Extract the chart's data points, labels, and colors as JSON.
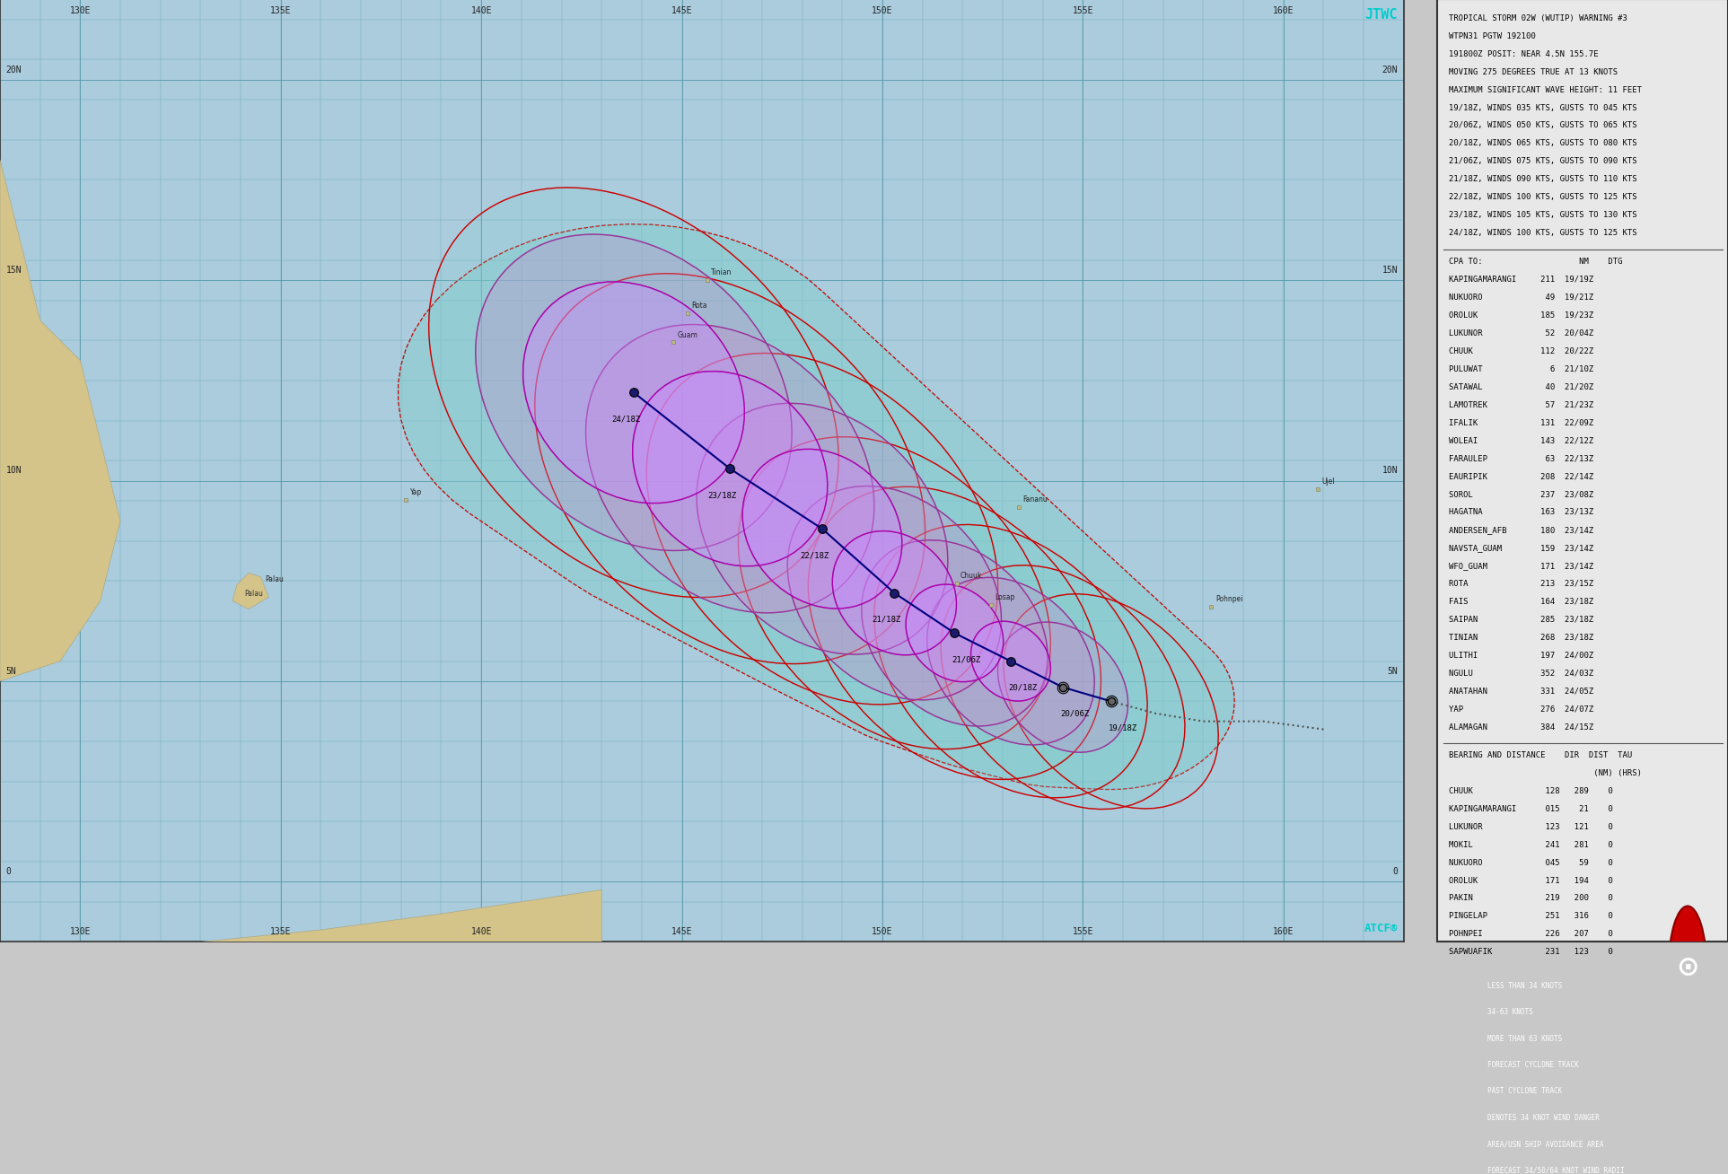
{
  "map_extent": [
    128.0,
    163.0,
    -1.5,
    22.0
  ],
  "background_ocean": "#aaccdd",
  "background_land": "#d4c48a",
  "grid_color": "#70aabb",
  "jtwc_color": "#00cccc",
  "atcf_color": "#00cccc",
  "track_line_color": "#000080",
  "past_track_color": "#555555",
  "wind34_fill": "#80cccc",
  "wind34_line": "#cc0000",
  "wind50_fill_color": "#cc88cc",
  "wind64_fill_color": "#9955bb",
  "storm_track_points": [
    {
      "lon": 155.7,
      "lat": 4.5,
      "time": "19/18Z",
      "winds": 35,
      "label_ox": 0.3,
      "label_oy": -0.55
    },
    {
      "lon": 154.5,
      "lat": 4.85,
      "time": "20/06Z",
      "winds": 50,
      "label_ox": 0.3,
      "label_oy": -0.55
    },
    {
      "lon": 153.2,
      "lat": 5.5,
      "time": "20/18Z",
      "winds": 65,
      "label_ox": 0.3,
      "label_oy": -0.55
    },
    {
      "lon": 151.8,
      "lat": 6.2,
      "time": "21/06Z",
      "winds": 75,
      "label_ox": 0.3,
      "label_oy": -0.55
    },
    {
      "lon": 150.3,
      "lat": 7.2,
      "time": "21/18Z",
      "winds": 90,
      "label_ox": -0.2,
      "label_oy": -0.55
    },
    {
      "lon": 148.5,
      "lat": 8.8,
      "time": "22/18Z",
      "winds": 100,
      "label_ox": -0.2,
      "label_oy": -0.55
    },
    {
      "lon": 146.2,
      "lat": 10.3,
      "time": "23/18Z",
      "winds": 105,
      "label_ox": -0.2,
      "label_oy": -0.55
    },
    {
      "lon": 143.8,
      "lat": 12.2,
      "time": "24/18Z",
      "winds": 100,
      "label_ox": -0.2,
      "label_oy": -0.55
    }
  ],
  "past_track_points": [
    {
      "lon": 161.0,
      "lat": 3.8
    },
    {
      "lon": 159.5,
      "lat": 4.0
    },
    {
      "lon": 158.0,
      "lat": 4.0
    },
    {
      "lon": 156.8,
      "lat": 4.2
    },
    {
      "lon": 155.7,
      "lat": 4.5
    }
  ],
  "radii_34kt": [
    2.2,
    2.5,
    2.8,
    3.0,
    3.2,
    3.6,
    4.0,
    4.2
  ],
  "radii_50kt": [
    0.0,
    1.4,
    1.8,
    2.0,
    2.3,
    2.7,
    3.1,
    3.4
  ],
  "radii_64kt": [
    0.0,
    0.0,
    0.9,
    1.1,
    1.4,
    1.8,
    2.2,
    2.5
  ],
  "lat_lines": [
    0,
    5,
    10,
    15,
    20
  ],
  "lon_lines": [
    130,
    135,
    140,
    145,
    150,
    155,
    160
  ],
  "islands": [
    {
      "name": "Tinian",
      "lon": 145.63,
      "lat": 15.0,
      "dot": true
    },
    {
      "name": "Rota",
      "lon": 145.15,
      "lat": 14.17,
      "dot": true
    },
    {
      "name": "Guam",
      "lon": 144.79,
      "lat": 13.45,
      "dot": true
    },
    {
      "name": "Yap",
      "lon": 138.12,
      "lat": 9.53,
      "dot": true
    },
    {
      "name": "Fananu",
      "lon": 153.4,
      "lat": 9.35,
      "dot": true
    },
    {
      "name": "Chuuk",
      "lon": 151.85,
      "lat": 7.45,
      "dot": true
    },
    {
      "name": "Losap",
      "lon": 152.7,
      "lat": 6.9,
      "dot": true
    },
    {
      "name": "Pohnpei",
      "lon": 158.2,
      "lat": 6.85,
      "dot": true
    },
    {
      "name": "Palau",
      "lon": 134.5,
      "lat": 7.35,
      "dot": false
    },
    {
      "name": "Ujel",
      "lon": 160.85,
      "lat": 9.8,
      "dot": true
    }
  ],
  "panel_lines": [
    "TROPICAL STORM 02W (WUTIP) WARNING #3",
    "WTPN31 PGTW 192100",
    "191800Z POSIT: NEAR 4.5N 155.7E",
    "MOVING 275 DEGREES TRUE AT 13 KNOTS",
    "MAXIMUM SIGNIFICANT WAVE HEIGHT: 11 FEET",
    "19/18Z, WINDS 035 KTS, GUSTS TO 045 KTS",
    "20/06Z, WINDS 050 KTS, GUSTS TO 065 KTS",
    "20/18Z, WINDS 065 KTS, GUSTS TO 080 KTS",
    "21/06Z, WINDS 075 KTS, GUSTS TO 090 KTS",
    "21/18Z, WINDS 090 KTS, GUSTS TO 110 KTS",
    "22/18Z, WINDS 100 KTS, GUSTS TO 125 KTS",
    "23/18Z, WINDS 105 KTS, GUSTS TO 130 KTS",
    "24/18Z, WINDS 100 KTS, GUSTS TO 125 KTS"
  ],
  "cpa_header": "CPA TO:                    NM    DTG",
  "cpa_entries": [
    "KAPINGAMARANGI     211  19/19Z",
    "NUKUORO             49  19/21Z",
    "OROLUK             185  19/23Z",
    "LUKUNOR             52  20/04Z",
    "CHUUK              112  20/22Z",
    "PULUWAT              6  21/10Z",
    "SATAWAL             40  21/20Z",
    "LAMOTREK            57  21/23Z",
    "IFALIK             131  22/09Z",
    "WOLEAI             143  22/12Z",
    "FARAULEP            63  22/13Z",
    "EAURIPIK           208  22/14Z",
    "SOROL              237  23/08Z",
    "HAGATNA            163  23/13Z",
    "ANDERSEN_AFB       180  23/14Z",
    "NAVSTA_GUAM        159  23/14Z",
    "WFO_GUAM           171  23/14Z",
    "ROTA               213  23/15Z",
    "FAIS               164  23/18Z",
    "SAIPAN             285  23/18Z",
    "TINIAN             268  23/18Z",
    "ULITHI             197  24/00Z",
    "NGULU              352  24/03Z",
    "ANATAHAN           331  24/05Z",
    "YAP                276  24/07Z",
    "ALAMAGAN           384  24/15Z"
  ],
  "bearing_header": "BEARING AND DISTANCE    DIR  DIST  TAU",
  "bearing_sub": "                              (NM) (HRS)",
  "bearing_entries": [
    "CHUUK               128   289    0",
    "KAPINGAMARANGI      015    21    0",
    "LUKUNOR             123   121    0",
    "MOKIL               241   281    0",
    "NUKUORO             045    59    0",
    "OROLUK              171   194    0",
    "PAKIN               219   200    0",
    "PINGELAP            251   316    0",
    "POHNPEI             226   207    0",
    "SAPWUAFIK           231   123    0"
  ],
  "legend_items": [
    {
      "sym": "oo",
      "text": "LESS THAN 34 KNOTS"
    },
    {
      "sym": "pp",
      "text": "34-63 KNOTS"
    },
    {
      "sym": "qq",
      "text": "MORE THAN 63 KNOTS"
    },
    {
      "sym": "line",
      "text": "FORECAST CYCLONE TRACK"
    },
    {
      "sym": "dot",
      "text": "PAST CYCLONE TRACK"
    },
    {
      "sym": "box34",
      "text": "DENOTES 34 KNOT WIND DANGER"
    },
    {
      "sym": "boxr",
      "text": "AREA/USN SHIP AVOIDANCE AREA"
    },
    {
      "sym": "circ",
      "text": "FORECAST 34/50/64 KNOT WIND RADII"
    }
  ]
}
